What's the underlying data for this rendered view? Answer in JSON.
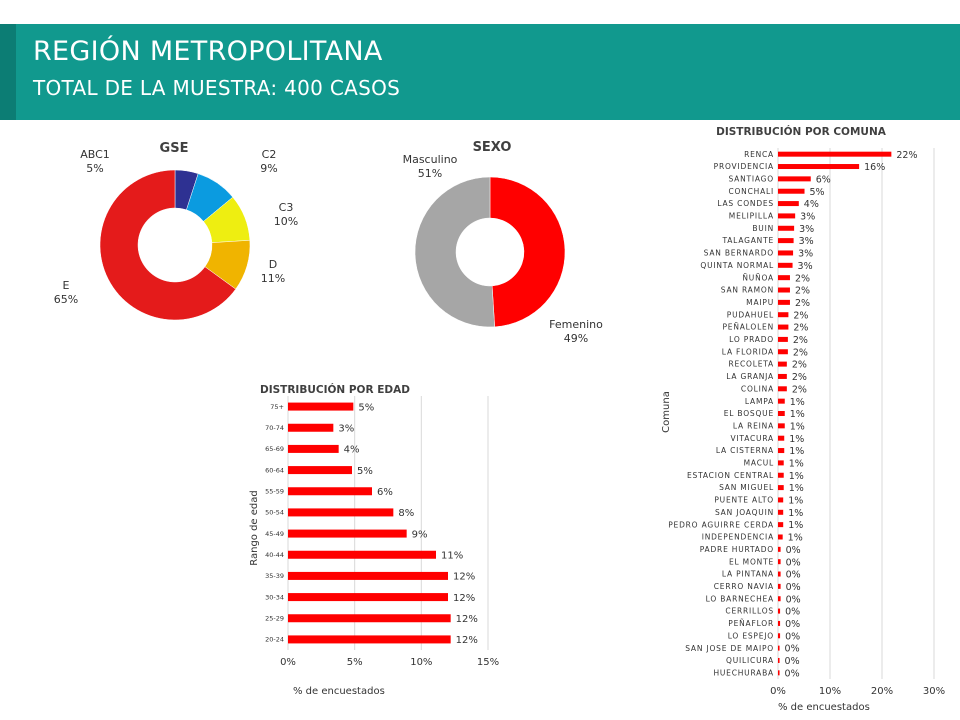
{
  "header": {
    "title": "REGIÓN METROPOLITANA",
    "subtitle": "TOTAL DE LA MUESTRA: 400 CASOS"
  },
  "chart_data": [
    {
      "type": "pie",
      "variant": "donut",
      "title": "GSE",
      "slices": [
        {
          "label": "ABC1",
          "value": 5,
          "display": "5%",
          "color": "#2e3192"
        },
        {
          "label": "C2",
          "value": 9,
          "display": "9%",
          "color": "#0b9be0"
        },
        {
          "label": "C3",
          "value": 10,
          "display": "10%",
          "color": "#eeee11"
        },
        {
          "label": "D",
          "value": 11,
          "display": "11%",
          "color": "#f0b400"
        },
        {
          "label": "E",
          "value": 65,
          "display": "65%",
          "color": "#e41b1b"
        }
      ]
    },
    {
      "type": "pie",
      "variant": "donut",
      "title": "SEXO",
      "slices": [
        {
          "label": "Femenino",
          "value": 49,
          "display": "49%",
          "color": "#ff0000"
        },
        {
          "label": "Masculino",
          "value": 51,
          "display": "51%",
          "color": "#a6a6a6"
        }
      ]
    },
    {
      "type": "bar",
      "orientation": "horizontal",
      "title": "DISTRIBUCIÓN POR EDAD",
      "xlabel": "% de encuestados",
      "ylabel": "Rango de edad",
      "xlim": [
        0,
        15
      ],
      "xticks": [
        "0%",
        "5%",
        "10%",
        "15%"
      ],
      "color": "#ff0000",
      "categories": [
        "75+",
        "70-74",
        "65-69",
        "60-64",
        "55-59",
        "50-54",
        "45-49",
        "40-44",
        "35-39",
        "30-34",
        "25-29",
        "20-24"
      ],
      "values": [
        4.9,
        3.4,
        3.8,
        4.8,
        6.3,
        7.9,
        8.9,
        11.1,
        12.0,
        12.0,
        12.2,
        12.2
      ],
      "labels": [
        "5%",
        "3%",
        "4%",
        "5%",
        "6%",
        "8%",
        "9%",
        "11%",
        "12%",
        "12%",
        "12%",
        "12%"
      ]
    },
    {
      "type": "bar",
      "orientation": "horizontal",
      "title": "DISTRIBUCIÓN POR COMUNA",
      "xlabel": "% de encuestados",
      "ylabel": "Comuna",
      "xlim": [
        0,
        30
      ],
      "xticks": [
        "0%",
        "10%",
        "20%",
        "30%"
      ],
      "color": "#ff0000",
      "categories": [
        "RENCA",
        "PROVIDENCIA",
        "SANTIAGO",
        "CONCHALI",
        "LAS CONDES",
        "MELIPILLA",
        "BUIN",
        "TALAGANTE",
        "SAN BERNARDO",
        "QUINTA NORMAL",
        "ÑUÑOA",
        "SAN RAMON",
        "MAIPU",
        "PUDAHUEL",
        "PEÑALOLEN",
        "LO PRADO",
        "LA FLORIDA",
        "RECOLETA",
        "LA GRANJA",
        "COLINA",
        "LAMPA",
        "EL BOSQUE",
        "LA REINA",
        "VITACURA",
        "LA CISTERNA",
        "MACUL",
        "ESTACION CENTRAL",
        "SAN MIGUEL",
        "PUENTE ALTO",
        "SAN JOAQUIN",
        "PEDRO AGUIRRE CERDA",
        "INDEPENDENCIA",
        "PADRE HURTADO",
        "EL MONTE",
        "LA PINTANA",
        "CERRO NAVIA",
        "LO BARNECHEA",
        "CERRILLOS",
        "PEÑAFLOR",
        "LO ESPEJO",
        "SAN JOSE DE MAIPO",
        "QUILICURA",
        "HUECHURABA"
      ],
      "values": [
        21.8,
        15.6,
        6.3,
        5.1,
        4.0,
        3.3,
        3.1,
        3.0,
        2.9,
        2.8,
        2.3,
        2.3,
        2.3,
        2.0,
        2.0,
        1.9,
        1.9,
        1.7,
        1.7,
        1.7,
        1.3,
        1.3,
        1.3,
        1.2,
        1.2,
        1.1,
        1.1,
        1.1,
        1.0,
        1.0,
        1.0,
        0.9,
        0.5,
        0.5,
        0.5,
        0.5,
        0.5,
        0.4,
        0.4,
        0.4,
        0.3,
        0.3,
        0.3
      ],
      "labels": [
        "22%",
        "16%",
        "6%",
        "5%",
        "4%",
        "3%",
        "3%",
        "3%",
        "3%",
        "3%",
        "2%",
        "2%",
        "2%",
        "2%",
        "2%",
        "2%",
        "2%",
        "2%",
        "2%",
        "2%",
        "1%",
        "1%",
        "1%",
        "1%",
        "1%",
        "1%",
        "1%",
        "1%",
        "1%",
        "1%",
        "1%",
        "1%",
        "0%",
        "0%",
        "0%",
        "0%",
        "0%",
        "0%",
        "0%",
        "0%",
        "0%",
        "0%",
        "0%"
      ]
    }
  ]
}
